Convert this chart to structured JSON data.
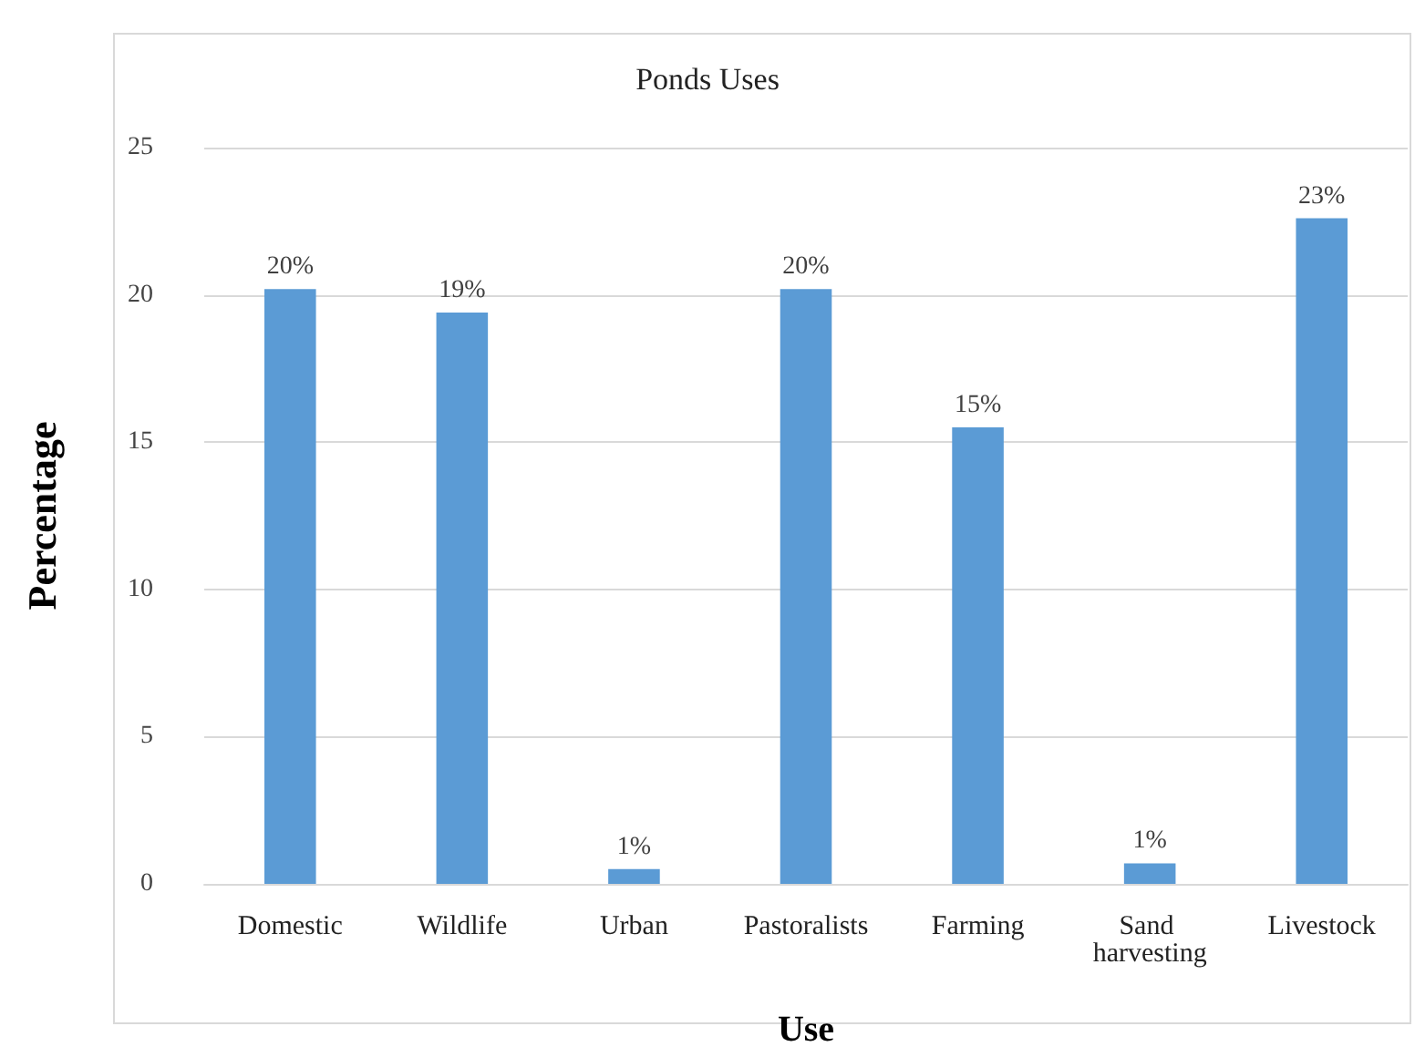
{
  "chart_data": {
    "type": "bar",
    "title": "Ponds Uses",
    "xlabel": "Use",
    "ylabel": "Percentage",
    "categories": [
      "Domestic",
      "Wildlife",
      "Urban",
      "Pastoralists",
      "Farming",
      "Sand harvesting",
      "Livestock"
    ],
    "values": [
      20.2,
      19.4,
      0.5,
      20.2,
      15.5,
      0.7,
      22.6
    ],
    "value_labels": [
      "20%",
      "19%",
      "1%",
      "20%",
      "15%",
      "1%",
      "23%"
    ],
    "color": "#5b9bd5",
    "ylim": [
      0,
      25
    ],
    "yticks": [
      0,
      5,
      10,
      15,
      20,
      25
    ],
    "grid": "y"
  }
}
